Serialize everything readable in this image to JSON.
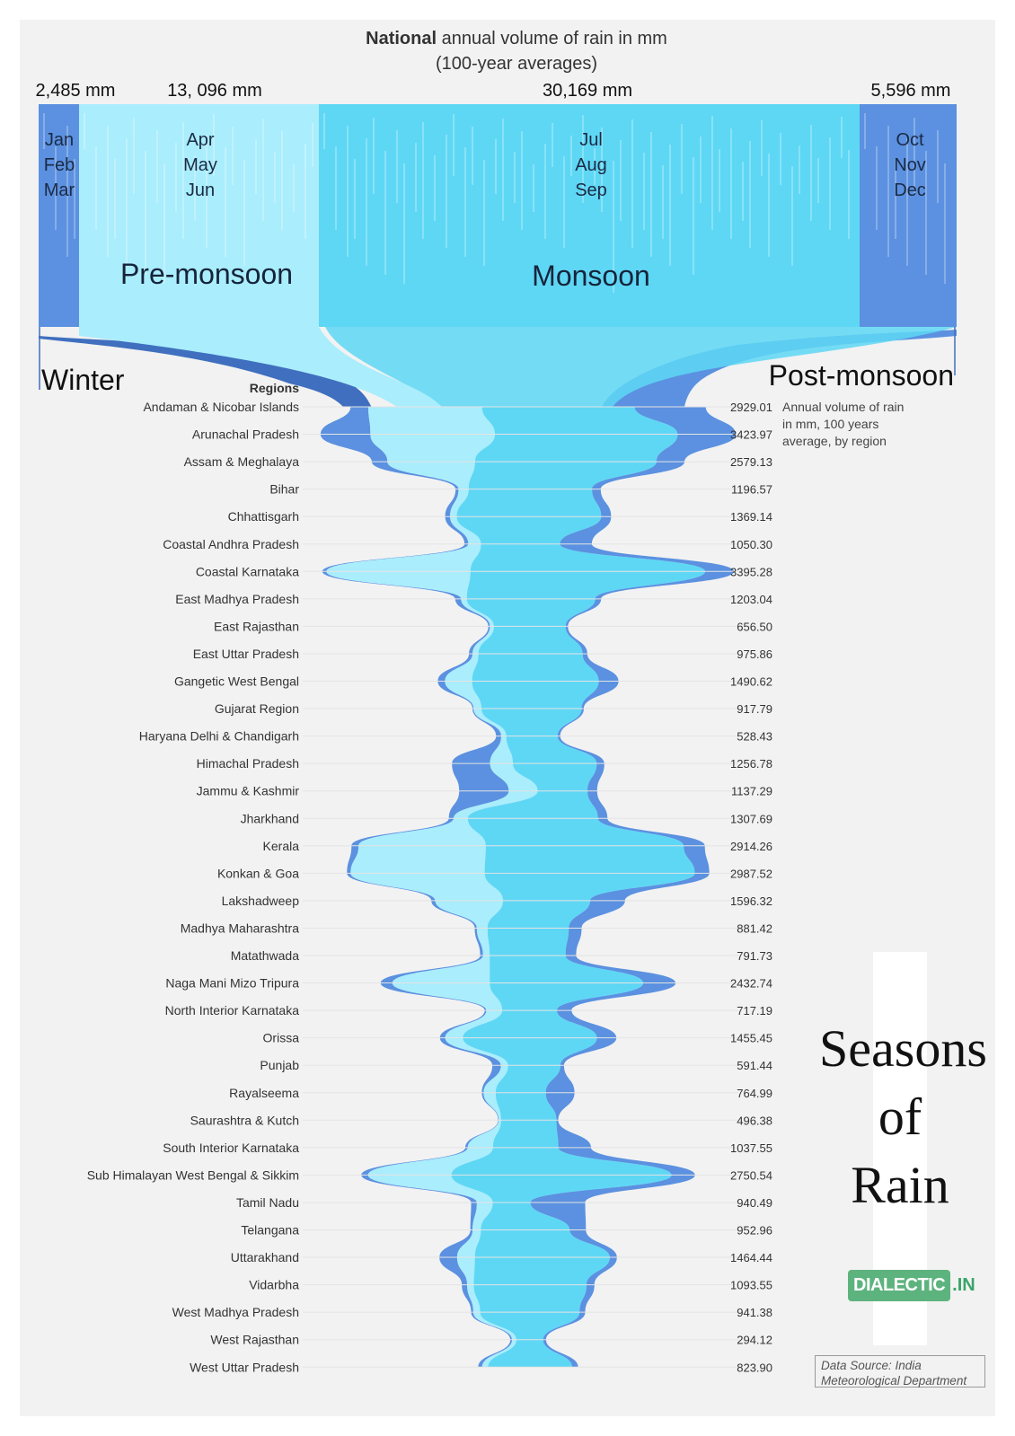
{
  "header": {
    "title_bold": "National",
    "title_rest": " annual volume of rain in mm",
    "subtitle": "(100-year averages)"
  },
  "colors": {
    "winter": "#5b91e0",
    "premonsoon": "#aaedfc",
    "monsoon": "#5ed7f5",
    "postmonsoon": "#5b91e0",
    "winter_dark": "#3f6fbe"
  },
  "seasons": [
    {
      "key": "winter",
      "total": "2,485 mm",
      "months": [
        "Jan",
        "Feb",
        "Mar"
      ],
      "name": "Winter"
    },
    {
      "key": "premonsoon",
      "total": "13, 096 mm",
      "months": [
        "Apr",
        "May",
        "Jun"
      ],
      "name": "Pre-monsoon"
    },
    {
      "key": "monsoon",
      "total": "30,169 mm",
      "months": [
        "Jul",
        "Aug",
        "Sep"
      ],
      "name": "Monsoon"
    },
    {
      "key": "postmonsoon",
      "total": "5,596 mm",
      "months": [
        "Oct",
        "Nov",
        "Dec"
      ],
      "name": "Post-monsoon"
    }
  ],
  "axis": {
    "regions_header": "Regions"
  },
  "note": {
    "lines": [
      "Annual volume of rain",
      "in mm, 100 years",
      "average, by region"
    ]
  },
  "chart_data": {
    "type": "area",
    "title": "National annual volume of rain in mm",
    "subtitle": "(100-year averages)",
    "national_totals_mm": {
      "Winter": 2485,
      "Pre-monsoon": 13096,
      "Monsoon": 30169,
      "Post-monsoon": 5596
    },
    "series_names": [
      "Winter",
      "Pre-monsoon",
      "Monsoon",
      "Post-monsoon"
    ],
    "regions": [
      {
        "name": "Andaman & Nicobar Islands",
        "total": "2929.01",
        "split": [
          0.05,
          0.32,
          0.43,
          0.2
        ]
      },
      {
        "name": "Arunachal Pradesh",
        "total": "3423.97",
        "split": [
          0.12,
          0.3,
          0.44,
          0.14
        ]
      },
      {
        "name": "Assam & Meghalaya",
        "total": "2579.13",
        "split": [
          0.05,
          0.28,
          0.58,
          0.09
        ]
      },
      {
        "name": "Bihar",
        "total": "1196.57",
        "split": [
          0.02,
          0.07,
          0.85,
          0.06
        ]
      },
      {
        "name": "Chhattisgarh",
        "total": "1369.14",
        "split": [
          0.03,
          0.04,
          0.87,
          0.06
        ]
      },
      {
        "name": "Coastal Andhra Pradesh",
        "total": "1050.30",
        "split": [
          0.03,
          0.1,
          0.62,
          0.25
        ]
      },
      {
        "name": "Coastal Karnataka",
        "total": "3395.28",
        "split": [
          0.01,
          0.35,
          0.57,
          0.07
        ]
      },
      {
        "name": "East Madhya Pradesh",
        "total": "1203.04",
        "split": [
          0.04,
          0.04,
          0.88,
          0.04
        ]
      },
      {
        "name": "East Rajasthan",
        "total": "656.50",
        "split": [
          0.02,
          0.05,
          0.9,
          0.03
        ]
      },
      {
        "name": "East Uttar Pradesh",
        "total": "975.86",
        "split": [
          0.03,
          0.05,
          0.88,
          0.04
        ]
      },
      {
        "name": "Gangetic West Bengal",
        "total": "1490.62",
        "split": [
          0.04,
          0.15,
          0.7,
          0.11
        ]
      },
      {
        "name": "Gujarat Region",
        "total": "917.79",
        "split": [
          0.01,
          0.07,
          0.9,
          0.02
        ]
      },
      {
        "name": "Haryana Delhi & Chandigarh",
        "total": "528.43",
        "split": [
          0.08,
          0.08,
          0.8,
          0.04
        ]
      },
      {
        "name": "Himachal Pradesh",
        "total": "1256.78",
        "split": [
          0.25,
          0.15,
          0.55,
          0.05
        ]
      },
      {
        "name": "Jammu & Kashmir",
        "total": "1137.29",
        "split": [
          0.36,
          0.21,
          0.36,
          0.07
        ]
      },
      {
        "name": "Jharkhand",
        "total": "1307.69",
        "split": [
          0.03,
          0.09,
          0.82,
          0.06
        ]
      },
      {
        "name": "Kerala",
        "total": "2914.26",
        "split": [
          0.02,
          0.36,
          0.56,
          0.06
        ]
      },
      {
        "name": "Konkan & Goa",
        "total": "2987.52",
        "split": [
          0.01,
          0.37,
          0.58,
          0.04
        ]
      },
      {
        "name": "Lakshadweep",
        "total": "1596.32",
        "split": [
          0.02,
          0.35,
          0.45,
          0.18
        ]
      },
      {
        "name": "Madhya Maharashtra",
        "total": "881.42",
        "split": [
          0.02,
          0.1,
          0.76,
          0.12
        ]
      },
      {
        "name": "Matathwada",
        "total": "791.73",
        "split": [
          0.03,
          0.07,
          0.79,
          0.11
        ]
      },
      {
        "name": "Naga Mani Mizo Tripura",
        "total": "2432.74",
        "split": [
          0.04,
          0.33,
          0.52,
          0.11
        ]
      },
      {
        "name": "North Interior Karnataka",
        "total": "717.19",
        "split": [
          0.02,
          0.18,
          0.63,
          0.17
        ]
      },
      {
        "name": "Orissa",
        "total": "1455.45",
        "split": [
          0.03,
          0.1,
          0.76,
          0.11
        ]
      },
      {
        "name": "Punjab",
        "total": "591.44",
        "split": [
          0.12,
          0.1,
          0.73,
          0.05
        ]
      },
      {
        "name": "Rayalseema",
        "total": "764.99",
        "split": [
          0.02,
          0.13,
          0.54,
          0.31
        ]
      },
      {
        "name": "Saurashtra & Kutch",
        "total": "496.38",
        "split": [
          0.01,
          0.04,
          0.92,
          0.03
        ]
      },
      {
        "name": "South Interior Karnataka",
        "total": "1037.55",
        "split": [
          0.02,
          0.2,
          0.52,
          0.26
        ]
      },
      {
        "name": "Sub Himalayan West Bengal & Sikkim",
        "total": "2750.54",
        "split": [
          0.02,
          0.25,
          0.66,
          0.07
        ]
      },
      {
        "name": "Tamil Nadu",
        "total": "940.49",
        "split": [
          0.05,
          0.14,
          0.33,
          0.48
        ]
      },
      {
        "name": "Telangana",
        "total": "952.96",
        "split": [
          0.02,
          0.07,
          0.77,
          0.14
        ]
      },
      {
        "name": "Uttarakhand",
        "total": "1464.44",
        "split": [
          0.1,
          0.1,
          0.76,
          0.04
        ]
      },
      {
        "name": "Vidarbha",
        "total": "1093.55",
        "split": [
          0.04,
          0.05,
          0.85,
          0.06
        ]
      },
      {
        "name": "West Madhya Pradesh",
        "total": "941.38",
        "split": [
          0.02,
          0.06,
          0.87,
          0.05
        ]
      },
      {
        "name": "West Rajasthan",
        "total": "294.12",
        "split": [
          0.05,
          0.12,
          0.75,
          0.08
        ]
      },
      {
        "name": "West Uttar Pradesh",
        "total": "823.90",
        "split": [
          0.04,
          0.06,
          0.84,
          0.06
        ]
      }
    ]
  },
  "branding": {
    "title_lines": [
      "Seasons",
      "of",
      "Rain"
    ],
    "logo_text": "DIALECTIC",
    "logo_tld": ".IN",
    "source_lines": [
      "Data Source: India",
      "Meteorological Department"
    ]
  }
}
